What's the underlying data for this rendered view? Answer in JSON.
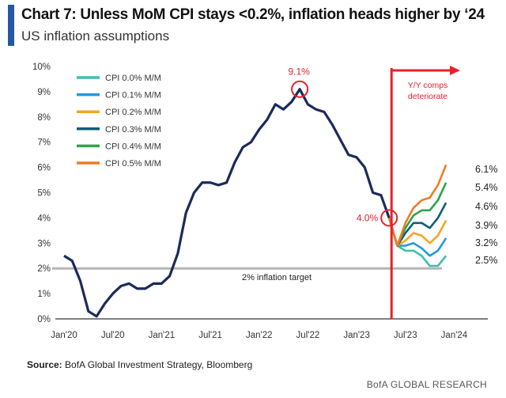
{
  "header": {
    "title": "Chart 7: Unless MoM CPI stays <0.2%, inflation heads higher by ‘24",
    "subtitle": "US inflation assumptions"
  },
  "footer": {
    "source_label": "Source:",
    "source_text": "BofA Global Investment Strategy, Bloomberg",
    "brand": "BofA GLOBAL RESEARCH"
  },
  "chart_data": {
    "type": "line",
    "title": "Chart 7: Unless MoM CPI stays <0.2%, inflation heads higher by ‘24",
    "subtitle": "US inflation assumptions",
    "ylim": [
      0,
      10
    ],
    "y_ticks": [
      "0%",
      "1%",
      "2%",
      "3%",
      "4%",
      "5%",
      "6%",
      "7%",
      "8%",
      "9%",
      "10%"
    ],
    "x_ticks": [
      "Jan'20",
      "Jul'20",
      "Jan'21",
      "Jul'21",
      "Jan'22",
      "Jul'22",
      "Jan'23",
      "Jul'23",
      "Jan'24"
    ],
    "grid": false,
    "legend_position": "top-left",
    "actual": {
      "start": "2020-01",
      "color": "#1c2a5c",
      "values": [
        2.5,
        2.3,
        1.5,
        0.3,
        0.1,
        0.6,
        1.0,
        1.3,
        1.4,
        1.2,
        1.2,
        1.4,
        1.4,
        1.7,
        2.6,
        4.2,
        5.0,
        5.4,
        5.4,
        5.3,
        5.4,
        6.2,
        6.8,
        7.0,
        7.5,
        7.9,
        8.5,
        8.3,
        8.6,
        9.1,
        8.5,
        8.3,
        8.2,
        7.7,
        7.1,
        6.5,
        6.4,
        6.0,
        5.0,
        4.9,
        4.0
      ]
    },
    "projection_start": "2023-06",
    "series": [
      {
        "name": "CPI 0.0% M/M",
        "color": "#3fbfae",
        "values": [
          2.9,
          2.7,
          2.7,
          2.5,
          2.1,
          2.1,
          2.5
        ],
        "end_label": "2.5%"
      },
      {
        "name": "CPI 0.1% M/M",
        "color": "#1f9ae0",
        "values": [
          2.9,
          2.9,
          3.0,
          2.8,
          2.5,
          2.7,
          3.2
        ],
        "end_label": "3.2%"
      },
      {
        "name": "CPI 0.2% M/M",
        "color": "#f5a623",
        "values": [
          2.9,
          3.1,
          3.4,
          3.3,
          3.0,
          3.3,
          3.9
        ],
        "end_label": "3.9%"
      },
      {
        "name": "CPI 0.3% M/M",
        "color": "#0e5e78",
        "values": [
          2.9,
          3.4,
          3.8,
          3.8,
          3.6,
          4.0,
          4.6
        ],
        "end_label": "4.6%"
      },
      {
        "name": "CPI 0.4% M/M",
        "color": "#2ca44a",
        "values": [
          2.9,
          3.6,
          4.1,
          4.3,
          4.3,
          4.7,
          5.4
        ],
        "end_label": "5.4%"
      },
      {
        "name": "CPI 0.5% M/M",
        "color": "#f07c22",
        "values": [
          2.9,
          3.8,
          4.4,
          4.7,
          4.8,
          5.3,
          6.1
        ],
        "end_label": "6.1%"
      }
    ],
    "annotations": {
      "peak": {
        "label": "9.1%",
        "date": "2022-06",
        "value": 9.1
      },
      "latest": {
        "label": "4.0%",
        "date": "2023-05",
        "value": 4.0
      },
      "target": {
        "label": "2% inflation target",
        "value": 2
      },
      "divider": {
        "label_line1": "Y/Y comps",
        "label_line2": "deteriorate",
        "date": "2023-05"
      }
    },
    "colors": {
      "accent": "#e8202a",
      "target_line": "#b5b5b5",
      "title_bar": "#2458a6"
    }
  }
}
